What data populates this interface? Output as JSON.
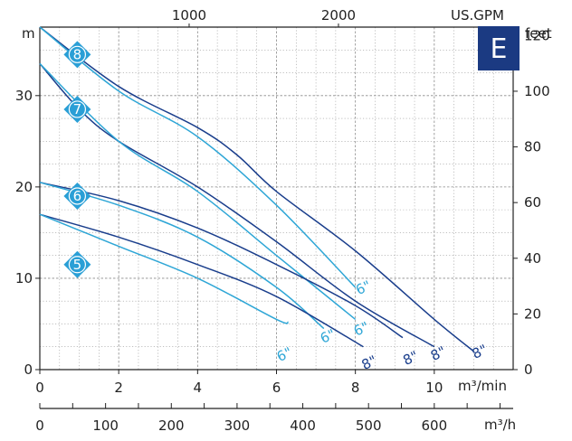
{
  "chart_data": {
    "type": "line",
    "title": "",
    "badge": "E",
    "axes": {
      "x_bottom": {
        "label": "m³/min",
        "range": [
          0,
          12
        ],
        "ticks": [
          0,
          2,
          4,
          6,
          8,
          10
        ]
      },
      "x_top": {
        "label": "US.GPM",
        "ticks": [
          1000,
          2000
        ]
      },
      "x_flow": {
        "label": "m³/h",
        "range": [
          0,
          720
        ],
        "ticks": [
          0,
          100,
          200,
          300,
          400,
          500,
          600
        ]
      },
      "y_left": {
        "label": "m",
        "range": [
          0,
          37.5
        ],
        "ticks": [
          0,
          10,
          20,
          30
        ]
      },
      "y_right": {
        "label": "feet",
        "ticks": [
          0,
          20,
          40,
          60,
          80,
          100,
          120
        ]
      }
    },
    "grid": true,
    "series": [
      {
        "group": "8",
        "label": "8\"",
        "color": "#1a3e8c",
        "points": [
          [
            0,
            37.5
          ],
          [
            2,
            31
          ],
          [
            4,
            26.5
          ],
          [
            5,
            23.5
          ],
          [
            6,
            19.5
          ],
          [
            8,
            13
          ],
          [
            10,
            5.5
          ],
          [
            11,
            2
          ]
        ]
      },
      {
        "group": "8",
        "label": "6\"",
        "color": "#2ea6d6",
        "points": [
          [
            0,
            37.5
          ],
          [
            2,
            30.5
          ],
          [
            4,
            25.5
          ],
          [
            6,
            18
          ],
          [
            8,
            9
          ]
        ]
      },
      {
        "group": "7",
        "label": "8\"",
        "color": "#1a3e8c",
        "points": [
          [
            0,
            33.5
          ],
          [
            1,
            28.5
          ],
          [
            2,
            25
          ],
          [
            4,
            20
          ],
          [
            6,
            14
          ],
          [
            8,
            7.5
          ],
          [
            10,
            2.5
          ]
        ]
      },
      {
        "group": "7",
        "label": "6\"",
        "color": "#2ea6d6",
        "points": [
          [
            0,
            33.5
          ],
          [
            2,
            25
          ],
          [
            4,
            19.5
          ],
          [
            6,
            12.5
          ],
          [
            8,
            5.5
          ]
        ]
      },
      {
        "group": "6",
        "label": "8\"",
        "color": "#1a3e8c",
        "points": [
          [
            0,
            20.5
          ],
          [
            2,
            18.5
          ],
          [
            4,
            15.5
          ],
          [
            6,
            11.5
          ],
          [
            8,
            7
          ],
          [
            9.2,
            3.5
          ]
        ]
      },
      {
        "group": "6",
        "label": "6\"",
        "color": "#2ea6d6",
        "points": [
          [
            0,
            20.5
          ],
          [
            2,
            18
          ],
          [
            4,
            14.5
          ],
          [
            6,
            9
          ],
          [
            7.2,
            4.5
          ]
        ]
      },
      {
        "group": "5",
        "label": "8\"",
        "color": "#1a3e8c",
        "points": [
          [
            0,
            17
          ],
          [
            2,
            14.5
          ],
          [
            4,
            11.5
          ],
          [
            6,
            8
          ],
          [
            8.2,
            2.5
          ]
        ]
      },
      {
        "group": "5",
        "label": "6\"",
        "color": "#2ea6d6",
        "points": [
          [
            0,
            17
          ],
          [
            2,
            13.5
          ],
          [
            4,
            10
          ],
          [
            6,
            5.5
          ],
          [
            6.3,
            5.2
          ]
        ]
      }
    ],
    "curve_labels": [
      {
        "text": "8\"",
        "x": 11.2,
        "y": 1.5,
        "color": "#1a3e8c"
      },
      {
        "text": "8\"",
        "x": 10.15,
        "y": 1.3,
        "color": "#1a3e8c"
      },
      {
        "text": "8\"",
        "x": 9.45,
        "y": 0.8,
        "color": "#1a3e8c"
      },
      {
        "text": "8\"",
        "x": 8.4,
        "y": 0.3,
        "color": "#1a3e8c"
      },
      {
        "text": "6\"",
        "x": 8.25,
        "y": 8.5,
        "color": "#2ea6d6"
      },
      {
        "text": "6\"",
        "x": 8.2,
        "y": 4.0,
        "color": "#2ea6d6"
      },
      {
        "text": "6\"",
        "x": 7.35,
        "y": 3.2,
        "color": "#2ea6d6"
      },
      {
        "text": "6\"",
        "x": 6.25,
        "y": 1.2,
        "color": "#2ea6d6"
      }
    ],
    "model_badges": [
      {
        "text": "8",
        "y": 34.5
      },
      {
        "text": "7",
        "y": 28.5
      },
      {
        "text": "6",
        "y": 19.0
      },
      {
        "text": "5",
        "y": 11.5
      }
    ],
    "colors": {
      "dark": "#1a3e8c",
      "light": "#2ea6d6",
      "badge_bg": "#1b3a82",
      "model_badge": "#2a9fd6"
    }
  }
}
